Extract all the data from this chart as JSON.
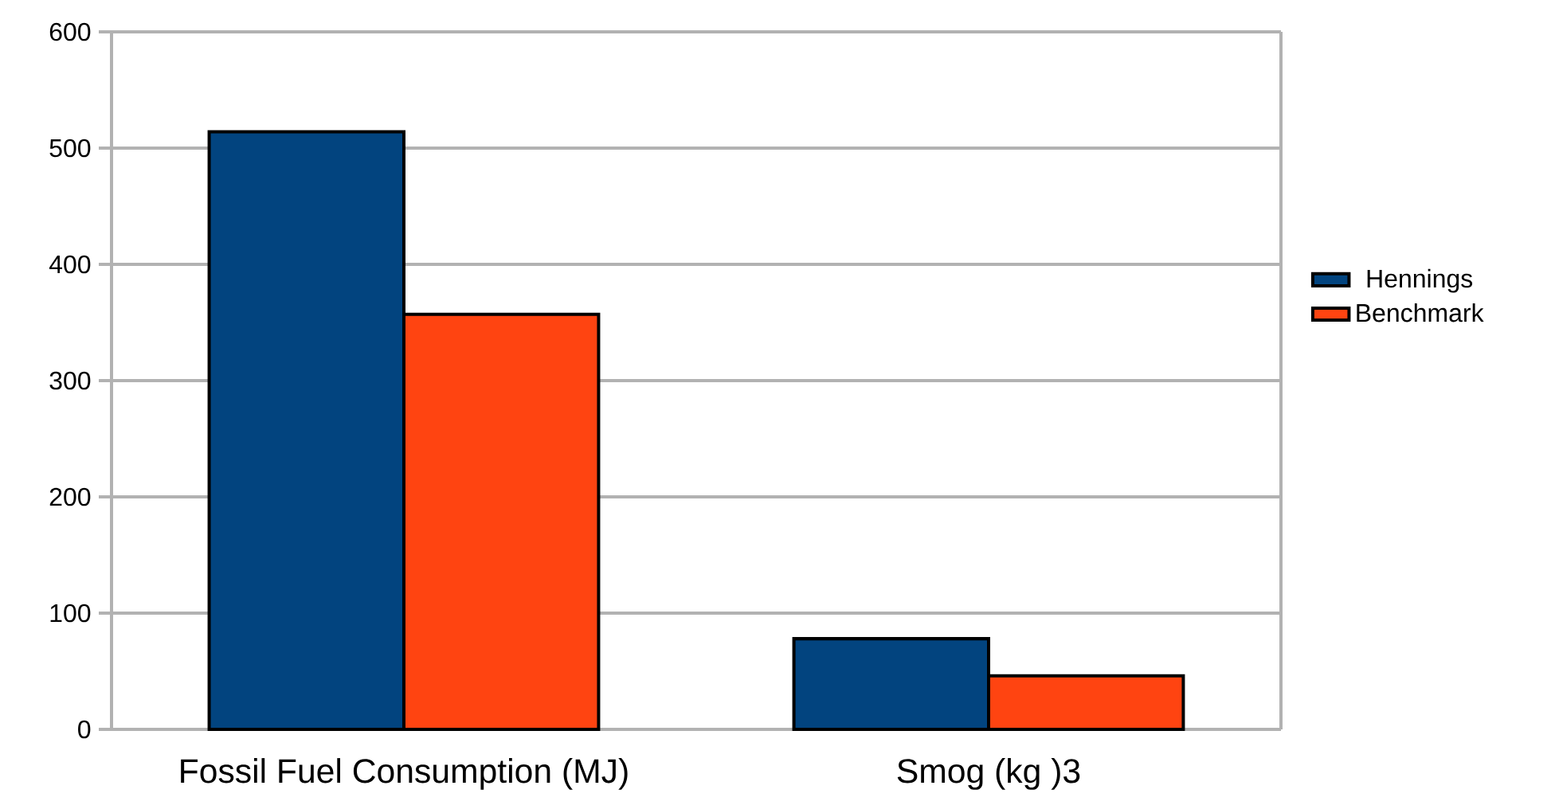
{
  "chart_data": {
    "type": "bar",
    "categories": [
      "Fossil Fuel Consumption (MJ)",
      "Smog (kg )3"
    ],
    "series": [
      {
        "name": "Hennings",
        "color": "#02447f",
        "values": [
          514,
          78
        ]
      },
      {
        "name": "Benchmark",
        "color": "#ff4411",
        "values": [
          357,
          46
        ]
      }
    ],
    "ylim": [
      0,
      600
    ],
    "yticks": [
      0,
      100,
      200,
      300,
      400,
      500,
      600
    ],
    "grid": "y",
    "legend": "right"
  }
}
